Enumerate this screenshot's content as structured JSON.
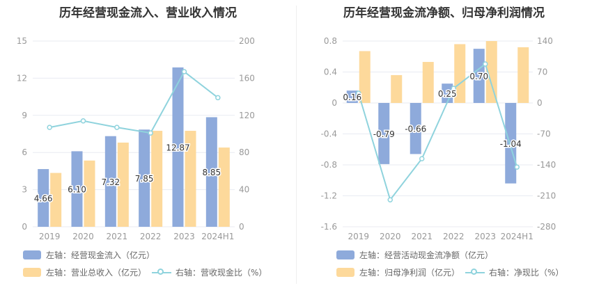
{
  "left": {
    "title": "历年经营现金流入、营业收入情况",
    "legend": {
      "bar1": "左轴：经营现金流入（亿元）",
      "bar2": "左轴：营业总收入（亿元）",
      "line": "右轴：营收现金比（%）"
    }
  },
  "right": {
    "title": "历年经营现金流净额、归母净利润情况",
    "legend": {
      "bar1": "左轴：经营活动现金流净额（亿元）",
      "bar2": "左轴：归母净利润（亿元）",
      "line": "右轴：净现比（%）"
    }
  },
  "colors": {
    "bar1": "#8eaadb",
    "bar2": "#fdd99b",
    "line": "#8fd3dd",
    "axisText": "#999999",
    "grid": "#e8ebf2"
  },
  "chart_data": [
    {
      "type": "bar",
      "title": "历年经营现金流入、营业收入情况",
      "categories": [
        "2019",
        "2020",
        "2021",
        "2022",
        "2023",
        "2024H1"
      ],
      "left_axis": {
        "ylim": [
          0,
          15
        ],
        "ticks": [
          0,
          3,
          6,
          9,
          12,
          15
        ]
      },
      "right_axis": {
        "ylim": [
          0,
          200
        ],
        "ticks": [
          0,
          40,
          80,
          120,
          160,
          200
        ]
      },
      "series": [
        {
          "name": "左轴：经营现金流入（亿元）",
          "axis": "left",
          "kind": "bar",
          "values": [
            4.66,
            6.1,
            7.32,
            7.85,
            12.87,
            8.85
          ],
          "labels": [
            "4.66",
            "6.10",
            "7.32",
            "7.85",
            "12.87",
            "8.85"
          ]
        },
        {
          "name": "左轴：营业总收入（亿元）",
          "axis": "left",
          "kind": "bar",
          "values": [
            4.35,
            5.35,
            6.8,
            7.75,
            7.75,
            6.4
          ]
        },
        {
          "name": "右轴：营收现金比（%）",
          "axis": "right",
          "kind": "line",
          "values": [
            107,
            114,
            107,
            101,
            167,
            139
          ]
        }
      ]
    },
    {
      "type": "bar",
      "title": "历年经营现金流净额、归母净利润情况",
      "categories": [
        "2019",
        "2020",
        "2021",
        "2022",
        "2023",
        "2024H1"
      ],
      "left_axis": {
        "ylim": [
          -1.6,
          0.8
        ],
        "ticks": [
          -1.6,
          -1.2,
          -0.8,
          -0.4,
          0,
          0.4,
          0.8
        ],
        "tick_labels": [
          "-1.6",
          "-1.2",
          "-0.8",
          "-0.4",
          "0",
          "0.4",
          "0.8"
        ]
      },
      "right_axis": {
        "ylim": [
          -280,
          140
        ],
        "ticks": [
          -280,
          -210,
          -140,
          -70,
          0,
          70,
          140
        ]
      },
      "series": [
        {
          "name": "左轴：经营活动现金流净额（亿元）",
          "axis": "left",
          "kind": "bar",
          "values": [
            0.16,
            -0.79,
            -0.66,
            0.25,
            0.7,
            -1.04
          ],
          "labels": [
            "0.16",
            "-0.79",
            "-0.66",
            "0.25",
            "0.70",
            "-1.04"
          ]
        },
        {
          "name": "左轴：归母净利润（亿元）",
          "axis": "left",
          "kind": "bar",
          "values": [
            0.67,
            0.36,
            0.53,
            0.76,
            0.8,
            0.72
          ]
        },
        {
          "name": "右轴：净现比（%）",
          "axis": "right",
          "kind": "line",
          "values": [
            22,
            -219,
            -126,
            33,
            88,
            -145
          ]
        }
      ]
    }
  ]
}
